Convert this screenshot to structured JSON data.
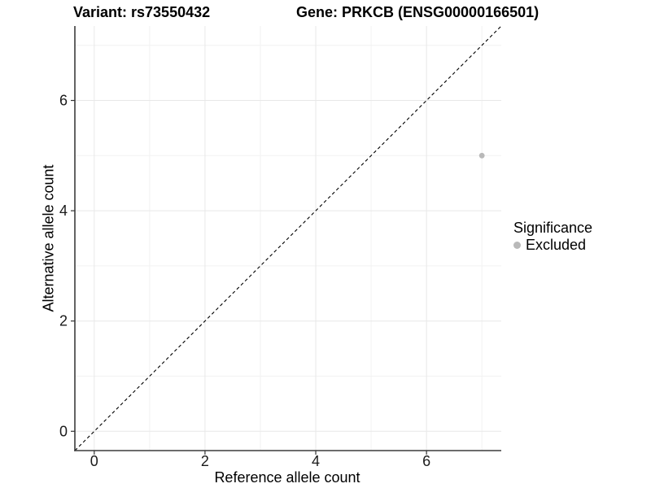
{
  "titles": {
    "left": "Variant: rs73550432",
    "right": "Gene: PRKCB (ENSG00000166501)"
  },
  "chart_data": {
    "type": "scatter",
    "xlabel": "Reference allele count",
    "ylabel": "Alternative allele count",
    "xlim": [
      -0.35,
      7.35
    ],
    "ylim": [
      -0.35,
      7.35
    ],
    "x_major_ticks": [
      0,
      2,
      4,
      6
    ],
    "y_major_ticks": [
      0,
      2,
      4,
      6
    ],
    "x_minor_gridlines": [
      1,
      3,
      5,
      7
    ],
    "y_minor_gridlines": [
      1,
      3,
      5,
      7
    ],
    "grid": true,
    "points": [
      {
        "x": 7,
        "y": 5,
        "series": "Excluded"
      }
    ],
    "reference_line": {
      "style": "dashed",
      "from": [
        -0.35,
        -0.35
      ],
      "to": [
        7.35,
        7.35
      ],
      "color": "#000000"
    },
    "legend": {
      "position": "right",
      "title": "Significance",
      "items": [
        {
          "label": "Excluded",
          "color": "#b9b9b9"
        }
      ]
    },
    "colors": {
      "major_grid": "#e8e8e8",
      "minor_grid": "#f2f2f2",
      "axis_line": "#3c3c3c",
      "tick_mark": "#333333",
      "tick_label": "#1a1a1a",
      "point": "#b9b9b9"
    }
  }
}
